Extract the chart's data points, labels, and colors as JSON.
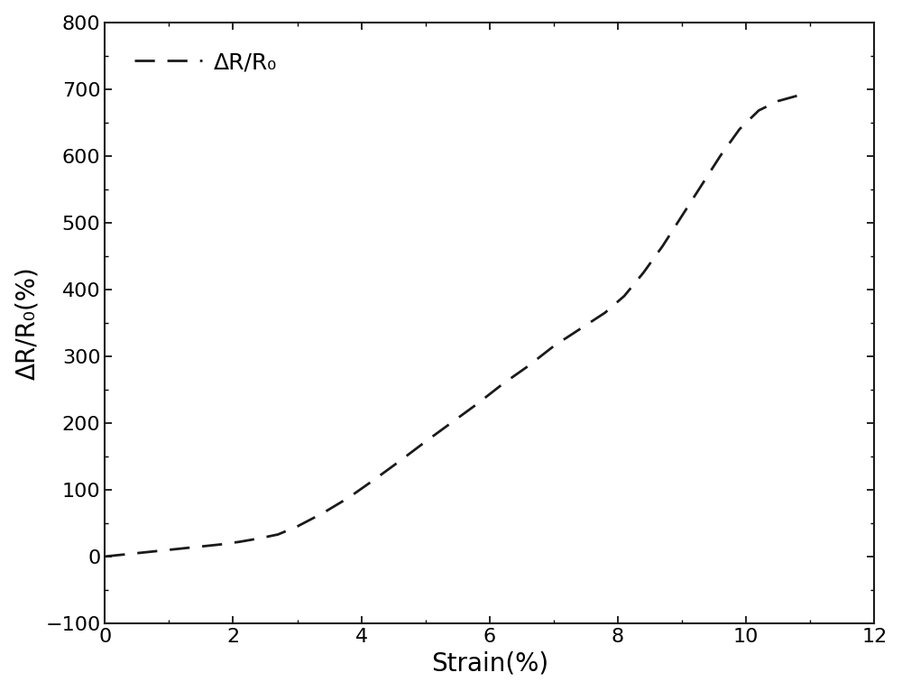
{
  "title": "",
  "xlabel": "Strain(%)",
  "ylabel": "ΔR/R₀(%)",
  "legend_label": "ΔR/R₀",
  "xlim": [
    0,
    12
  ],
  "ylim": [
    -100,
    800
  ],
  "xticks": [
    0,
    2,
    4,
    6,
    8,
    10,
    12
  ],
  "yticks": [
    -100,
    0,
    100,
    200,
    300,
    400,
    500,
    600,
    700,
    800
  ],
  "line_color": "#1a1a1a",
  "line_width": 2.0,
  "x": [
    0.0,
    0.3,
    0.6,
    0.9,
    1.2,
    1.5,
    1.8,
    2.1,
    2.4,
    2.7,
    3.0,
    3.4,
    3.8,
    4.2,
    4.6,
    5.0,
    5.4,
    5.8,
    6.2,
    6.6,
    7.0,
    7.4,
    7.8,
    8.1,
    8.4,
    8.7,
    9.0,
    9.3,
    9.6,
    9.9,
    10.2,
    10.5,
    10.8
  ],
  "y": [
    0.0,
    3.0,
    6.0,
    9.0,
    12.0,
    15.0,
    18.0,
    22.0,
    27.0,
    33.0,
    45.0,
    65.0,
    88.0,
    115.0,
    143.0,
    172.0,
    200.0,
    228.0,
    258.0,
    285.0,
    315.0,
    340.0,
    365.0,
    390.0,
    425.0,
    465.0,
    510.0,
    555.0,
    600.0,
    640.0,
    668.0,
    682.0,
    690.0
  ],
  "background_color": "#ffffff",
  "tick_fontsize": 16,
  "label_fontsize": 20,
  "legend_fontsize": 18,
  "dash_on": 8,
  "dash_off": 5
}
